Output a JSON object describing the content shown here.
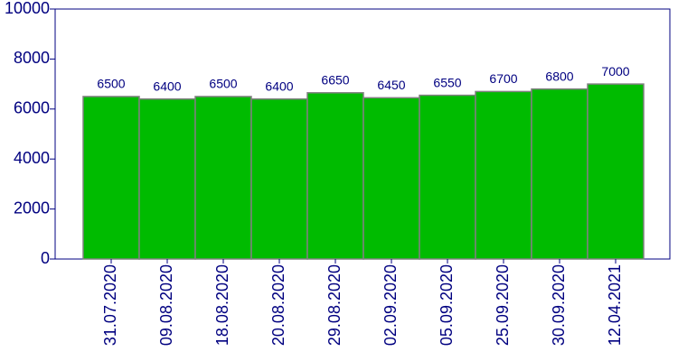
{
  "chart_data": {
    "type": "bar",
    "categories": [
      "31.07.2020",
      "09.08.2020",
      "18.08.2020",
      "20.08.2020",
      "29.08.2020",
      "02.09.2020",
      "05.09.2020",
      "25.09.2020",
      "30.09.2020",
      "12.04.2021"
    ],
    "values": [
      6500,
      6400,
      6500,
      6400,
      6650,
      6450,
      6550,
      6700,
      6800,
      7000
    ],
    "color": "#00bb00",
    "ylim": [
      0,
      10000
    ],
    "yticks": [
      0,
      2000,
      4000,
      6000,
      8000,
      10000
    ],
    "grid": false
  }
}
